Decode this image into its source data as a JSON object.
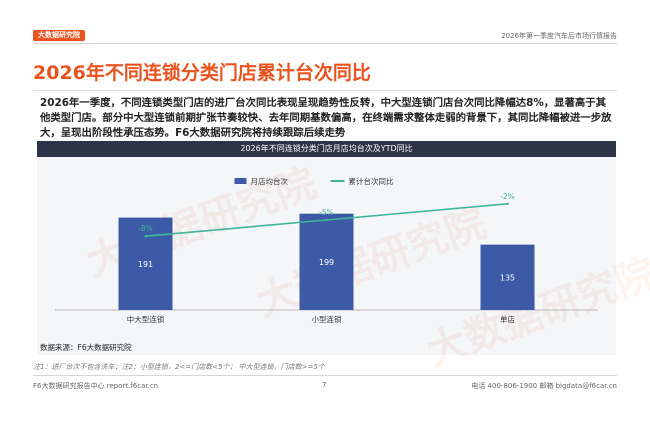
{
  "header": {
    "logo_text": "大数据研究院",
    "report_title": "2026年第一季度汽车后市场行情报告"
  },
  "page_title": "2026年不同连锁分类门店累计台次同比",
  "paragraph": "2026年一季度，不同连锁类型门店的进厂台次同比表现呈现趋势性反转，中大型连锁门店台次同比降幅达8%，显著高于其他类型门店。部分中大型连锁前期扩张节奏较快、去年同期基数偏高，在终端需求整体走弱的背景下，其同比降幅被进一步放大，呈现出阶段性承压态势。F6大数据研究院将持续跟踪后续走势",
  "watermark": "大数据研究院",
  "chart_data": {
    "type": "bar",
    "title": "2026年不同连锁分类门店月店均台次及YTD同比",
    "categories": [
      "中大型连锁",
      "小型连锁",
      "单店"
    ],
    "series": [
      {
        "name": "月店均台次",
        "kind": "bar",
        "values": [
          191,
          199,
          135
        ],
        "labels": [
          "191",
          "199",
          "135"
        ]
      },
      {
        "name": "累计台次同比",
        "kind": "line",
        "values": [
          -8,
          -5,
          -2
        ],
        "labels": [
          "-8%",
          "-5%",
          "-2%"
        ]
      }
    ],
    "colors": {
      "bar": "#3c5aa6",
      "line": "#3fb59a",
      "line_label": "#3fb59a"
    },
    "bar_ylim": [
      0,
      250
    ],
    "legend_position": "top",
    "grid": false
  },
  "source": "数据来源：F6大数据研究院",
  "note": "注1：进厂台次不包含洗车；注2：小型连锁，2<=门店数<5个； 中大型连锁，门店数>=5个",
  "footer": {
    "left": "F6大数据研究报告中心 report.f6car.cn",
    "page": "7",
    "right": "电话 400-806-1900  邮箱 bigdata@f6car.cn"
  }
}
